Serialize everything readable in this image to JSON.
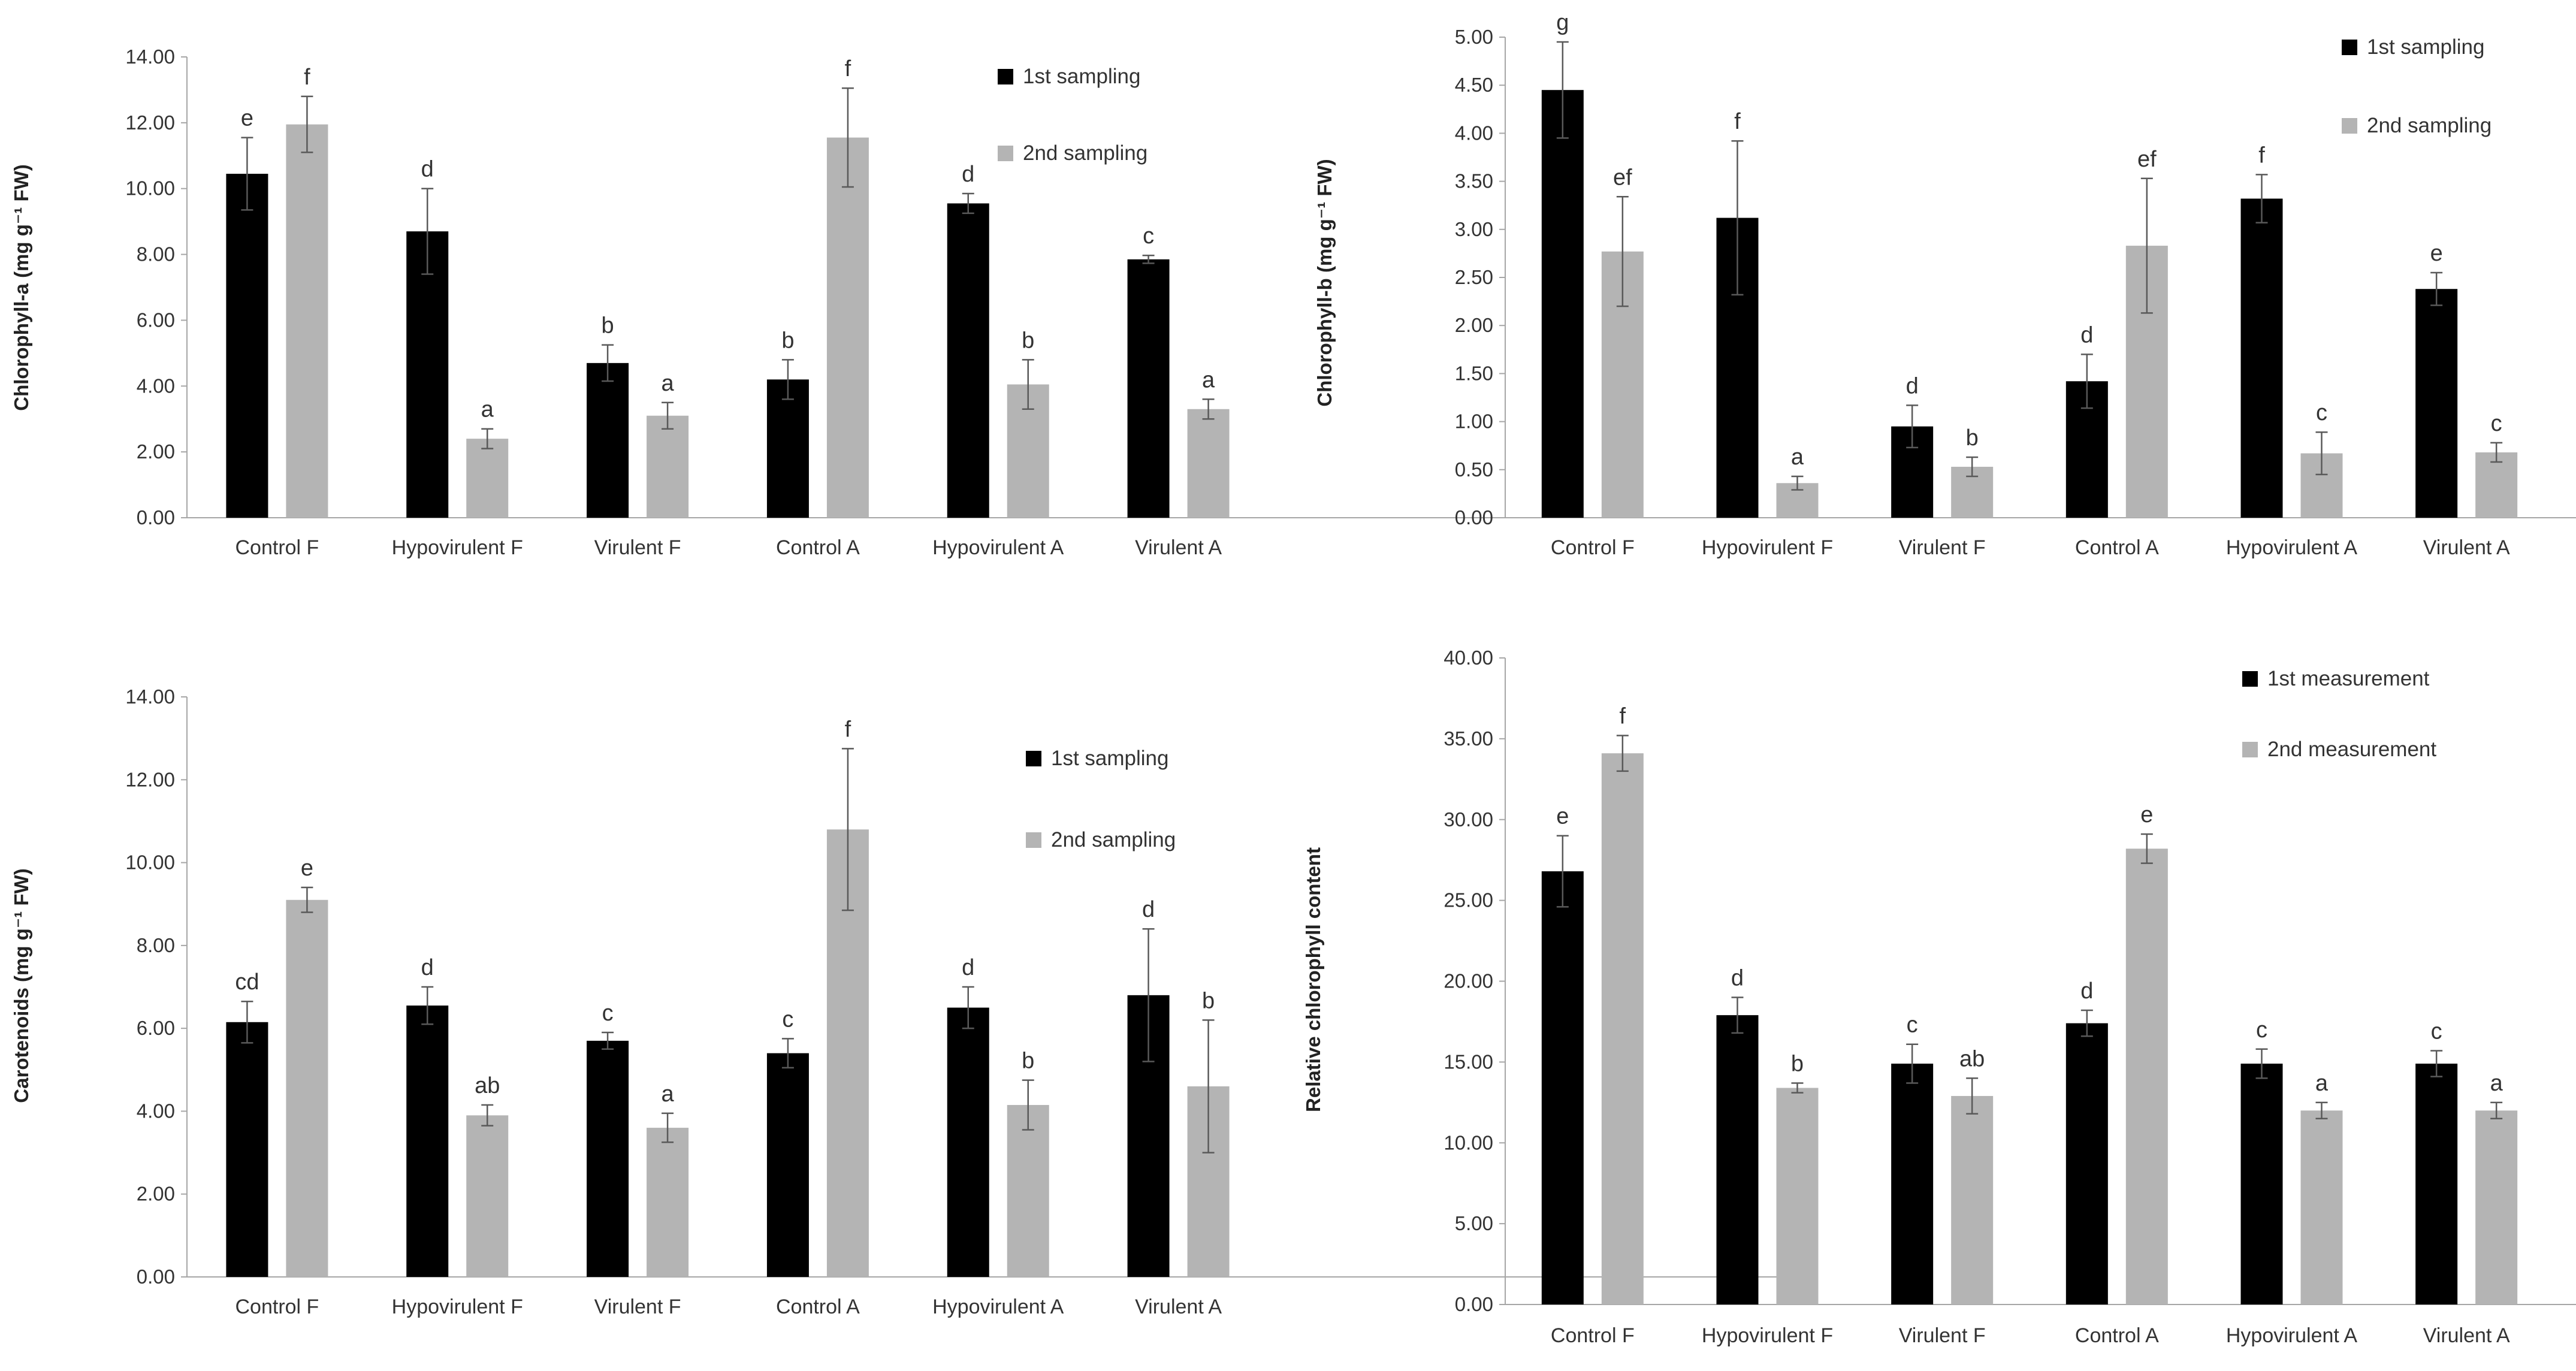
{
  "colors": {
    "first": "#000000",
    "second": "#b4b4b4",
    "axis": "#a6a6a6",
    "err": "#595959"
  },
  "chart_data": [
    {
      "type": "bar",
      "ylabel": "Chlorophyll-a (mg g⁻¹ FW)",
      "ylim": [
        0,
        14
      ],
      "yticks": [
        "0.00",
        "2.00",
        "4.00",
        "6.00",
        "8.00",
        "10.00",
        "12.00",
        "14.00"
      ],
      "categories": [
        "Control F",
        "Hypovirulent F",
        "Virulent F",
        "Control A",
        "Hypovirulent A",
        "Virulent A"
      ],
      "legend_position": "top-right",
      "series": [
        {
          "name": "1st sampling",
          "values": [
            10.45,
            8.7,
            4.7,
            4.2,
            9.55,
            7.85
          ],
          "errors": [
            1.1,
            1.3,
            0.55,
            0.6,
            0.3,
            0.12
          ],
          "letters": [
            "e",
            "d",
            "b",
            "b",
            "d",
            "c"
          ]
        },
        {
          "name": "2nd sampling",
          "values": [
            11.95,
            2.4,
            3.1,
            11.55,
            4.05,
            3.3
          ],
          "errors": [
            0.85,
            0.3,
            0.4,
            1.5,
            0.75,
            0.3
          ],
          "letters": [
            "f",
            "a",
            "a",
            "f",
            "b",
            "a"
          ]
        }
      ]
    },
    {
      "type": "bar",
      "ylabel": "Chlorophyll-b (mg g⁻¹ FW)",
      "ylim": [
        0,
        5
      ],
      "yticks": [
        "0.00",
        "0.50",
        "1.00",
        "1.50",
        "2.00",
        "2.50",
        "3.00",
        "3.50",
        "4.00",
        "4.50",
        "5.00"
      ],
      "categories": [
        "Control F",
        "Hypovirulent F",
        "Virulent F",
        "Control A",
        "Hypovirulent A",
        "Virulent A"
      ],
      "legend_position": "top-right",
      "series": [
        {
          "name": "1st sampling",
          "values": [
            4.45,
            3.12,
            0.95,
            1.42,
            3.32,
            2.38
          ],
          "errors": [
            0.5,
            0.8,
            0.22,
            0.28,
            0.25,
            0.17
          ],
          "letters": [
            "g",
            "f",
            "d",
            "d",
            "f",
            "e"
          ]
        },
        {
          "name": "2nd sampling",
          "values": [
            2.77,
            0.36,
            0.53,
            2.83,
            0.67,
            0.68
          ],
          "errors": [
            0.57,
            0.07,
            0.1,
            0.7,
            0.22,
            0.1
          ],
          "letters": [
            "ef",
            "a",
            "b",
            "ef",
            "c",
            "c"
          ]
        }
      ]
    },
    {
      "type": "bar",
      "ylabel": "Carotenoids (mg g⁻¹ FW)",
      "ylim": [
        0,
        14
      ],
      "yticks": [
        "0.00",
        "2.00",
        "4.00",
        "6.00",
        "8.00",
        "10.00",
        "12.00",
        "14.00"
      ],
      "categories": [
        "Control F",
        "Hypovirulent F",
        "Virulent F",
        "Control A",
        "Hypovirulent A",
        "Virulent A"
      ],
      "legend_position": "top-right",
      "series": [
        {
          "name": "1st sampling",
          "values": [
            6.15,
            6.55,
            5.7,
            5.4,
            6.5,
            6.8
          ],
          "errors": [
            0.5,
            0.45,
            0.2,
            0.35,
            0.5,
            1.6
          ],
          "letters": [
            "cd",
            "d",
            "c",
            "c",
            "d",
            "d"
          ]
        },
        {
          "name": "2nd sampling",
          "values": [
            9.1,
            3.9,
            3.6,
            10.8,
            4.15,
            4.6
          ],
          "errors": [
            0.3,
            0.25,
            0.35,
            1.95,
            0.6,
            1.6
          ],
          "letters": [
            "e",
            "ab",
            "a",
            "f",
            "b",
            "b"
          ]
        }
      ]
    },
    {
      "type": "bar",
      "ylabel": "Relative chlorophyll content",
      "ylim": [
        0,
        40
      ],
      "yticks": [
        "0.00",
        "5.00",
        "10.00",
        "15.00",
        "20.00",
        "25.00",
        "30.00",
        "35.00",
        "40.00"
      ],
      "categories": [
        "Control F",
        "Hypovirulent F",
        "Virulent F",
        "Control A",
        "Hypovirulent A",
        "Virulent A"
      ],
      "legend_position": "top-right",
      "series": [
        {
          "name": "1st measurement",
          "values": [
            26.8,
            17.9,
            14.9,
            17.4,
            14.9,
            14.9
          ],
          "errors": [
            2.2,
            1.1,
            1.2,
            0.8,
            0.9,
            0.8
          ],
          "letters": [
            "e",
            "d",
            "c",
            "d",
            "c",
            "c"
          ]
        },
        {
          "name": "2nd measurement",
          "values": [
            34.1,
            13.4,
            12.9,
            28.2,
            12.0,
            12.0
          ],
          "errors": [
            1.1,
            0.3,
            1.1,
            0.9,
            0.5,
            0.5
          ],
          "letters": [
            "f",
            "b",
            "ab",
            "e",
            "a",
            "a"
          ]
        }
      ]
    }
  ]
}
